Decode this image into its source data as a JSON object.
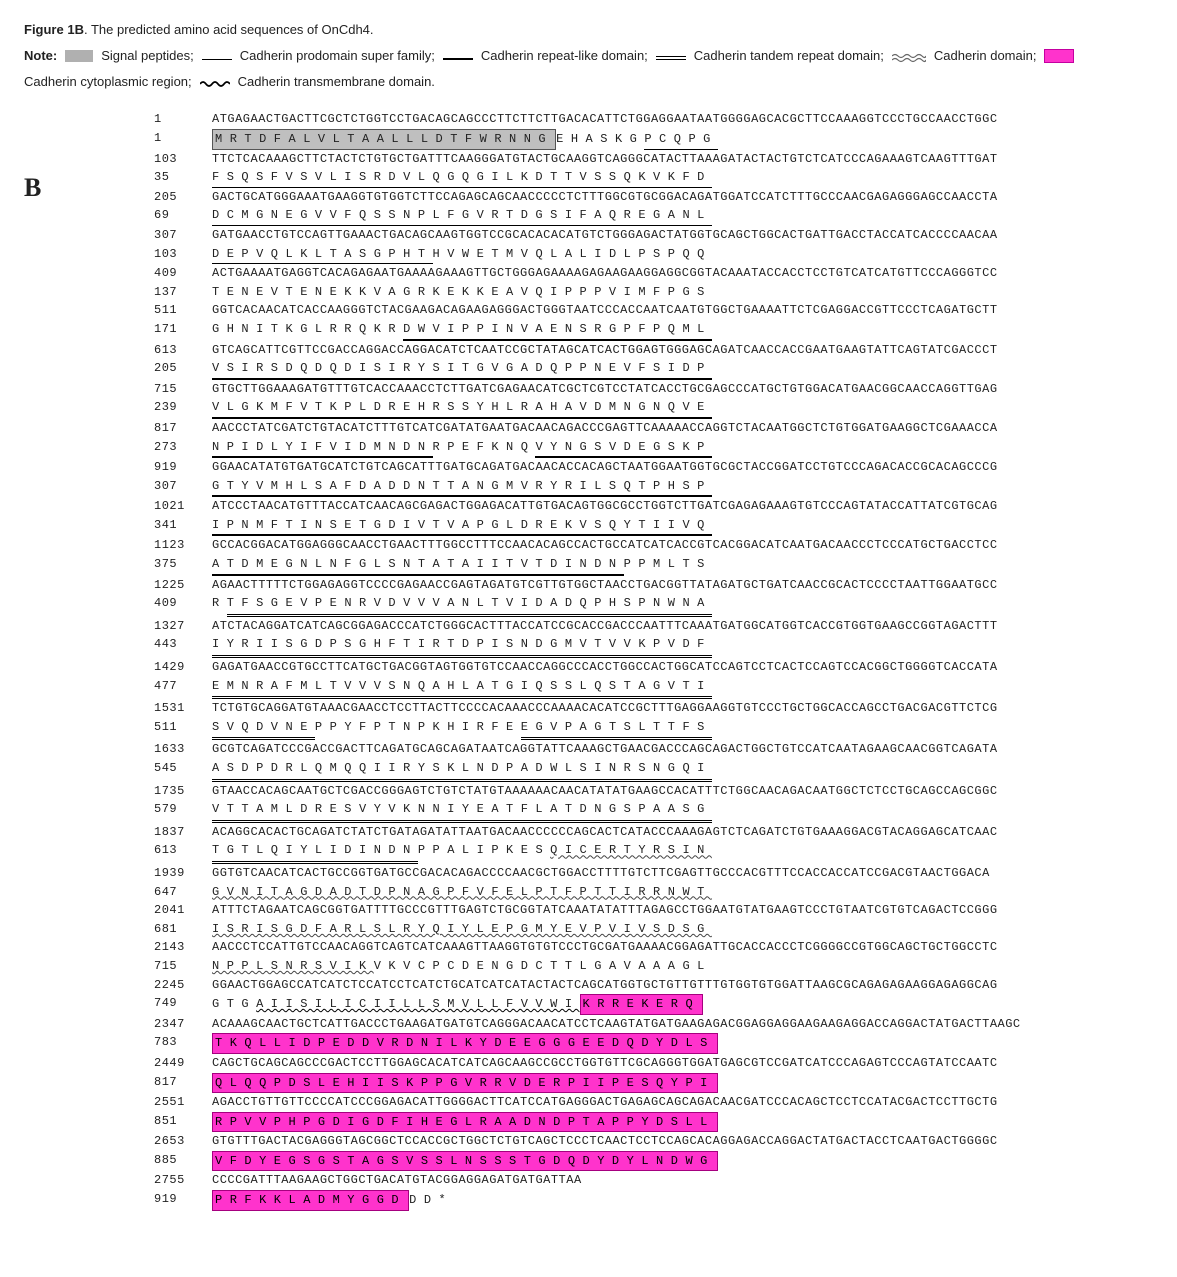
{
  "title_strong": "Figure 1B",
  "title_rest": ". The predicted amino acid sequences of OnCdh4.",
  "note_label": "Note",
  "legend": {
    "signal_peptides": "Signal peptides;",
    "prodomain": "Cadherin prodomain super family;",
    "repeat_like": "Cadherin repeat-like domain;",
    "tandem_repeat": "Cadherin tandem repeat domain;",
    "cadherin_domain": "Cadherin domain;",
    "cytoplasmic": "Cadherin cytoplasmic region;",
    "transmembrane": "Cadherin transmembrane domain."
  },
  "panel_label": "B",
  "colors": {
    "gray_box": "#bfbfbf",
    "pink_box": "#ff33cc",
    "pink_border": "#a6007f"
  },
  "lines": [
    {
      "type": "nt",
      "pos": 1,
      "seq": "ATGAGAACTGACTTCGCTCTGGTCCTGACAGCAGCCCTTCTTCTTGACACATTCTGGAGGAATAATGGGGAGCACGCTTCCAAAGGTCCCTGCCAACCTGGC"
    },
    {
      "type": "aa",
      "pos": 1,
      "runs": [
        {
          "s": "box-gray",
          "t": "MRTDFALVLTAALLLDTFWRNNG"
        },
        {
          "s": "",
          "t": "EHASKG"
        },
        {
          "s": "ul-thin",
          "t": "PCQPG"
        }
      ]
    },
    {
      "type": "nt",
      "pos": 103,
      "seq": "TTCTCACAAAGCTTCTACTCTGTGCTGATTTCAAGGGATGTACTGCAAGGTCAGGGCATACTTAAAGATACTACTGTCTCATCCCAGAAAGTCAAGTTTGAT"
    },
    {
      "type": "aa",
      "pos": 35,
      "runs": [
        {
          "s": "ul-thin",
          "t": "FSQSFVSVLISRDVLQGQGILKDTTVSSQKVKFD"
        }
      ]
    },
    {
      "type": "nt",
      "pos": 205,
      "seq": "GACTGCATGGGAAATGAAGGTGTGGTCTTCCAGAGCAGCAACCCCCTCTTTGGCGTGCGGACAGATGGATCCATCTTTGCCCAACGAGAGGGAGCCAACCTA"
    },
    {
      "type": "aa",
      "pos": 69,
      "runs": [
        {
          "s": "ul-thin",
          "t": "DCMGNEGVVFQSSNPLFGVRTDGSIFAQREGANL"
        }
      ]
    },
    {
      "type": "nt",
      "pos": 307,
      "seq": "GATGAACCTGTCCAGTTGAAACTGACAGCAAGTGGTCCGCACACACATGTCTGGGAGACTATGGTGCAGCTGGCACTGATTGACCTACCATCACCCCAACAA"
    },
    {
      "type": "aa",
      "pos": 103,
      "runs": [
        {
          "s": "ul-thin",
          "t": "DEPVQLKLTASGPHT"
        },
        {
          "s": "",
          "t": "HVWETMVQLALIDLPSPQQ"
        }
      ]
    },
    {
      "type": "nt",
      "pos": 409,
      "seq": "ACTGAAAATGAGGTCACAGAGAATGAAAAGAAAGTTGCTGGGAGAAAAGAGAAGAAGGAGGCGGTACAAATACCACCTCCTGTCATCATGTTCCCAGGGTCC"
    },
    {
      "type": "aa",
      "pos": 137,
      "runs": [
        {
          "s": "",
          "t": "TENEVTENEKKVAGRKEKKEAVQIPPPVIMFPGS"
        }
      ]
    },
    {
      "type": "nt",
      "pos": 511,
      "seq": "GGTCACAACATCACCAAGGGTCTACGAAGACAGAAGAGGGACTGGGTAATCCCACCAATCAATGTGGCTGAAAATTCTCGAGGACCGTTCCCTCAGATGCTT"
    },
    {
      "type": "aa",
      "pos": 171,
      "runs": [
        {
          "s": "",
          "t": "GHNITKGLRRQKR"
        },
        {
          "s": "ul-med",
          "t": "DWVIPPINVAENSRGPFPQML"
        }
      ]
    },
    {
      "type": "nt",
      "pos": 613,
      "seq": "GTCAGCATTCGTTCCGACCAGGACCAGGACATCTCAATCCGCTATAGCATCACTGGAGTGGGAGCAGATCAACCACCGAATGAAGTATTCAGTATCGACCCT"
    },
    {
      "type": "aa",
      "pos": 205,
      "runs": [
        {
          "s": "ul-med",
          "t": "VSIRSDQDQDISIRYSITGVGADQPPNEVFSIDP"
        }
      ]
    },
    {
      "type": "nt",
      "pos": 715,
      "seq": "GTGCTTGGAAAGATGTTTGTCACCAAACCTCTTGATCGAGAACATCGCTCGTCCTATCACCTGCGAGCCCATGCTGTGGACATGAACGGCAACCAGGTTGAG"
    },
    {
      "type": "aa",
      "pos": 239,
      "runs": [
        {
          "s": "ul-med",
          "t": "VLGKMFVTKPLDREHRSSYHLRAHAVDMNGNQVE"
        }
      ]
    },
    {
      "type": "nt",
      "pos": 817,
      "seq": "AACCCTATCGATCTGTACATCTTTGTCATCGATATGAATGACAACAGACCCGAGTTCAAAAACCAGGTCTACAATGGCTCTGTGGATGAAGGCTCGAAACCA"
    },
    {
      "type": "aa",
      "pos": 273,
      "runs": [
        {
          "s": "ul-med",
          "t": "NPIDLYIFVIDMNDN"
        },
        {
          "s": "",
          "t": "RPEFKNQ"
        },
        {
          "s": "ul-med",
          "t": "VYNGSVDEGSKP"
        }
      ]
    },
    {
      "type": "nt",
      "pos": 919,
      "seq": "GGAACATATGTGATGCATCTGTCAGCATTTGATGCAGATGACAACACCACAGCTAATGGAATGGTGCGCTACCGGATCCTGTCCCAGACACCGCACAGCCCG"
    },
    {
      "type": "aa",
      "pos": 307,
      "runs": [
        {
          "s": "ul-med",
          "t": "GTYVMHLSAFDADDNTTANGMVRYRILSQTPHSP"
        }
      ]
    },
    {
      "type": "nt",
      "pos": 1021,
      "seq": "ATCCCTAACATGTTTACCATCAACAGCGAGACTGGAGACATTGTGACAGTGGCGCCTGGTCTTGATCGAGAGAAAGTGTCCCAGTATACCATTATCGTGCAG"
    },
    {
      "type": "aa",
      "pos": 341,
      "runs": [
        {
          "s": "ul-med",
          "t": "IPNMFTINSETGDIVTVAPGLDREKVSQYTIIVQ"
        }
      ]
    },
    {
      "type": "nt",
      "pos": 1123,
      "seq": "GCCACGGACATGGAGGGCAACCTGAACTTTGGCCTTTCCAACACAGCCACTGCCATCATCACCGTCACGGACATCAATGACAACCCTCCCATGCTGACCTCC"
    },
    {
      "type": "aa",
      "pos": 375,
      "runs": [
        {
          "s": "ul-med",
          "t": "ATDMEGNLNFGLSNTATAIITVTDINDN"
        },
        {
          "s": "",
          "t": "PPMLTS"
        }
      ]
    },
    {
      "type": "nt",
      "pos": 1225,
      "seq": "AGAACTTTTTCTGGAGAGGTCCCCGAGAACCGAGTAGATGTCGTTGTGGCTAACCTGACGGTTATAGATGCTGATCAACCGCACTCCCCTAATTGGAATGCC"
    },
    {
      "type": "aa",
      "pos": 409,
      "runs": [
        {
          "s": "",
          "t": "R"
        },
        {
          "s": "ul-double",
          "t": "TFSGEVPENRVDVVVANLTVIDADQPHSPNWNA"
        }
      ]
    },
    {
      "type": "nt",
      "pos": 1327,
      "seq": "ATCTACAGGATCATCAGCGGAGACCCATCTGGGCACTTTACCATCCGCACCGACCCAATTTCAAATGATGGCATGGTCACCGTGGTGAAGCCGGTAGACTTT"
    },
    {
      "type": "aa",
      "pos": 443,
      "runs": [
        {
          "s": "ul-double",
          "t": "IYRIISGDPSGHFTIRTDPISNDGMVTVVKPVDF"
        }
      ]
    },
    {
      "type": "nt",
      "pos": 1429,
      "seq": "GAGATGAACCGTGCCTTCATGCTGACGGTAGTGGTGTCCAACCAGGCCCACCTGGCCACTGGCATCCAGTCCTCACTCCAGTCCACGGCTGGGGTCACCATA"
    },
    {
      "type": "aa",
      "pos": 477,
      "runs": [
        {
          "s": "ul-double",
          "t": "EMNRAFMLTVVVSNQAHLATGIQSSLQSTAGVTI"
        }
      ]
    },
    {
      "type": "nt",
      "pos": 1531,
      "seq": "TCTGTGCAGGATGTAAACGAACCTCCTTACTTCCCCACAAACCCAAAACACATCCGCTTTGAGGAAGGTGTCCCTGCTGGCACCAGCCTGACGACGTTCTCG"
    },
    {
      "type": "aa",
      "pos": 511,
      "runs": [
        {
          "s": "ul-double",
          "t": "SVQDVNE"
        },
        {
          "s": "",
          "t": "PPYFPTNPKHIRFE"
        },
        {
          "s": "ul-double",
          "t": "EGVPAGTSLTTFS"
        }
      ]
    },
    {
      "type": "nt",
      "pos": 1633,
      "seq": "GCGTCAGATCCCGACCGACTTCAGATGCAGCAGATAATCAGGTATTCAAAGCTGAACGACCCAGCAGACTGGCTGTCCATCAATAGAAGCAACGGTCAGATA"
    },
    {
      "type": "aa",
      "pos": 545,
      "runs": [
        {
          "s": "ul-double",
          "t": "ASDPDRLQMQQIIRYSKLNDPADWLSINRSNGQI"
        }
      ]
    },
    {
      "type": "nt",
      "pos": 1735,
      "seq": "GTAACCACAGCAATGCTCGACCGGGAGTCTGTCTATGTAAAAAACAACATATATGAAGCCACATTTCTGGCAACAGACAATGGCTCTCCTGCAGCCAGCGGC"
    },
    {
      "type": "aa",
      "pos": 579,
      "runs": [
        {
          "s": "ul-double",
          "t": "VTTAMLDRESVYVKNNIYEATFLATDNGSPAASG"
        }
      ]
    },
    {
      "type": "nt",
      "pos": 1837,
      "seq": "ACAGGCACACTGCAGATCTATCTGATAGATATTAATGACAACCCCCCAGCACTCATACCCAAAGAGTCTCAGATCTGTGAAAGGACGTACAGGAGCATCAAC"
    },
    {
      "type": "aa",
      "pos": 613,
      "runs": [
        {
          "s": "ul-double",
          "t": "TGTLQIYLIDINDN"
        },
        {
          "s": "",
          "t": "PPALIPKES"
        },
        {
          "s": "ul-wave-d",
          "t": "QICERTYRSIN"
        }
      ]
    },
    {
      "type": "nt",
      "pos": 1939,
      "seq": "GGTGTCAACATCACTGCCGGTGATGCCGACACAGACCCCAACGCTGGACCTTTTGTCTTCGAGTTGCCCACGTTTCCACCACCATCCGACGTAACTGGACA"
    },
    {
      "type": "aa",
      "pos": 647,
      "runs": [
        {
          "s": "ul-wave-d",
          "t": "GVNITAGDADTDPNAGPFVFELPTFPTTIRRNWT"
        }
      ]
    },
    {
      "type": "nt",
      "pos": 2041,
      "seq": "ATTTCTAGAATCAGCGGTGATTTTGCCCGTTTGAGTCTGCGGTATCAAATATATTTAGAGCCTGGAATGTATGAAGTCCCTGTAATCGTGTCAGACTCCGGG"
    },
    {
      "type": "aa",
      "pos": 681,
      "runs": [
        {
          "s": "ul-wave-d",
          "t": "ISRISGDFARLSLRYQIYLEPGMYEVPVIVSDSG"
        }
      ]
    },
    {
      "type": "nt",
      "pos": 2143,
      "seq": "AACCCTCCATTGTCCAACAGGTCAGTCATCAAAGTTAAGGTGTGTCCCTGCGATGAAAACGGAGATTGCACCACCCTCGGGGCCGTGGCAGCTGCTGGCCTC"
    },
    {
      "type": "aa",
      "pos": 715,
      "runs": [
        {
          "s": "ul-wave-d",
          "t": "NPPLSNRSVIK"
        },
        {
          "s": "",
          "t": "VKVCPCDENGDCTTLGAVAAAGL"
        }
      ]
    },
    {
      "type": "nt",
      "pos": 2245,
      "seq": "GGAACTGGAGCCATCATCTCCATCCTCATCTGCATCATCATACTACTCAGCATGGTGCTGTTGTTTGTGGTGTGGATTAAGCGCAGAGAGAAGGAGAGGCAG"
    },
    {
      "type": "aa",
      "pos": 749,
      "runs": [
        {
          "s": "",
          "t": "GTG"
        },
        {
          "s": "ul-wave-s",
          "t": "AIISILICIILLSMVLLFVVWI"
        },
        {
          "s": "box-pink",
          "t": "KRREKERQ"
        }
      ]
    },
    {
      "type": "nt",
      "pos": 2347,
      "seq": "ACAAAGCAACTGCTCATTGACCCTGAAGATGATGTCAGGGACAACATCCTCAAGTATGATGAAGAGACGGAGGAGGAAGAAGAGGACCAGGACTATGACTTAAGC"
    },
    {
      "type": "aa",
      "pos": 783,
      "runs": [
        {
          "s": "box-pink",
          "t": "TKQLLIDPEDDVRDNILKYDEEGGGEEDQDYDLS"
        }
      ]
    },
    {
      "type": "nt",
      "pos": 2449,
      "seq": "CAGCTGCAGCAGCCCGACTCCTTGGAGCACATCATCAGCAAGCCGCCTGGTGTTCGCAGGGTGGATGAGCGTCCGATCATCCCAGAGTCCCAGTATCCAATC"
    },
    {
      "type": "aa",
      "pos": 817,
      "runs": [
        {
          "s": "box-pink",
          "t": "QLQQPDSLEHIISKPPGVRRVDERPIIPESQYPI"
        }
      ]
    },
    {
      "type": "nt",
      "pos": 2551,
      "seq": "AGACCTGTTGTTCCCCATCCCGGAGACATTGGGGACTTCATCCATGAGGGACTGAGAGCAGCAGACAACGATCCCACAGCTCCTCCATACGACTCCTTGCTG"
    },
    {
      "type": "aa",
      "pos": 851,
      "runs": [
        {
          "s": "box-pink",
          "t": "RPVVPHPGDIGDFIHEGLRAADNDPTAPPYDSLL"
        }
      ]
    },
    {
      "type": "nt",
      "pos": 2653,
      "seq": "GTGTTTGACTACGAGGGTAGCGGCTCCACCGCTGGCTCTGTCAGCTCCCTCAACTCCTCCAGCACAGGAGACCAGGACTATGACTACCTCAATGACTGGGGC"
    },
    {
      "type": "aa",
      "pos": 885,
      "runs": [
        {
          "s": "box-pink",
          "t": "VFDYEGSGSTAGSVSSLNSSSTGDQDYDYLNDWG"
        }
      ]
    },
    {
      "type": "nt",
      "pos": 2755,
      "seq": "CCCCGATTTAAGAAGCTGGCTGACATGTACGGAGGAGATGATGATTAA"
    },
    {
      "type": "aa",
      "pos": 919,
      "runs": [
        {
          "s": "box-pink",
          "t": "PRFKKLADMYGGD"
        },
        {
          "s": "",
          "t": "DD*"
        }
      ]
    }
  ]
}
